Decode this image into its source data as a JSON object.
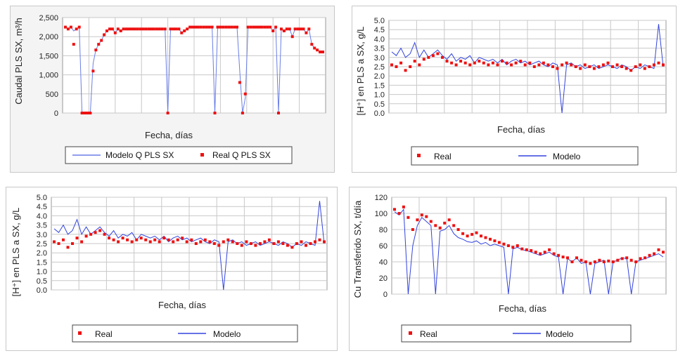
{
  "charts": [
    {
      "ylabel": "Caudal PLS SX, m³/h",
      "xlabel": "Fecha, días",
      "yticks": [
        "2,500",
        "2,000",
        "1,500",
        "1,000",
        "500",
        "0"
      ],
      "legend": [
        "Modelo Q PLS SX",
        "Real Q PLS SX"
      ],
      "colors": {
        "model": "#6a7fe6",
        "real": "#ee1111"
      }
    },
    {
      "ylabel": "[H⁺] en PLS a SX, g/L",
      "xlabel": "Fecha, días",
      "yticks": [
        "5.0",
        "4.5",
        "4.0",
        "3.5",
        "3.0",
        "2.5",
        "2.0",
        "1.5",
        "1.0",
        "0.5",
        "0.0"
      ],
      "legend": [
        "Real",
        "Modelo"
      ],
      "colors": {
        "model": "#3344dd",
        "real": "#ee1111"
      }
    },
    {
      "ylabel": "[H⁺] en PLS a SX, g/L",
      "xlabel": "Fecha, días",
      "yticks": [
        "5.0",
        "4.5",
        "4.0",
        "3.5",
        "3.0",
        "2.5",
        "2.0",
        "1.5",
        "1.0",
        "0.5",
        "0.0"
      ],
      "legend": [
        "Real",
        "Modelo"
      ],
      "colors": {
        "model": "#3344dd",
        "real": "#ee1111"
      }
    },
    {
      "ylabel": "Cu Transferido SX, t/día",
      "xlabel": "Fecha, días",
      "yticks": [
        "120",
        "100",
        "80",
        "60",
        "40",
        "20",
        "0"
      ],
      "legend": [
        "Real",
        "Modelo"
      ],
      "colors": {
        "model": "#3344dd",
        "real": "#ee1111"
      }
    }
  ],
  "chart_data": [
    {
      "type": "scatter",
      "ylabel": "Caudal PLS SX, m³/h",
      "xlabel": "Fecha, días",
      "ylim": [
        0,
        2500
      ],
      "grid": true,
      "legend_position": "bottom",
      "series": [
        {
          "name": "Modelo Q PLS SX",
          "style": "line",
          "values": [
            2250,
            2200,
            2250,
            2150,
            2200,
            2250,
            0,
            0,
            0,
            0,
            1300,
            1650,
            1800,
            1900,
            2050,
            2150,
            2200,
            2200,
            2100,
            2200,
            2150,
            2200,
            2200,
            2200,
            2200,
            2200,
            2200,
            2200,
            2200,
            2200,
            2200,
            2200,
            2200,
            2200,
            2200,
            2200,
            2200,
            0,
            2200,
            2200,
            2200,
            2200,
            2100,
            2150,
            2200,
            2250,
            2250,
            2250,
            2250,
            2250,
            2250,
            2250,
            2250,
            2250,
            0,
            2250,
            2250,
            2250,
            2250,
            2250,
            2250,
            2250,
            2250,
            1100,
            0,
            400,
            2250,
            2250,
            2250,
            2250,
            2250,
            2250,
            2250,
            2250,
            2250,
            2150,
            2250,
            0,
            2200,
            2150,
            2200,
            2200,
            2000,
            2200,
            2200,
            2200,
            2200,
            2100,
            2200,
            1800,
            1700,
            1650,
            1600,
            1600
          ]
        },
        {
          "name": "Real Q PLS SX",
          "style": "markers",
          "values": [
            2250,
            2200,
            2250,
            1800,
            2200,
            2250,
            0,
            0,
            0,
            0,
            1100,
            1650,
            1800,
            1900,
            2050,
            2150,
            2200,
            2200,
            2100,
            2200,
            2150,
            2200,
            2200,
            2200,
            2200,
            2200,
            2200,
            2200,
            2200,
            2200,
            2200,
            2200,
            2200,
            2200,
            2200,
            2200,
            2200,
            0,
            2200,
            2200,
            2200,
            2200,
            2100,
            2150,
            2200,
            2250,
            2250,
            2250,
            2250,
            2250,
            2250,
            2250,
            2250,
            2250,
            0,
            2250,
            2250,
            2250,
            2250,
            2250,
            2250,
            2250,
            2250,
            800,
            0,
            500,
            2250,
            2250,
            2250,
            2250,
            2250,
            2250,
            2250,
            2250,
            2250,
            2150,
            2250,
            0,
            2200,
            2150,
            2200,
            2200,
            2000,
            2200,
            2200,
            2200,
            2200,
            2100,
            2200,
            1800,
            1700,
            1650,
            1600,
            1600
          ]
        }
      ]
    },
    {
      "type": "scatter",
      "ylabel": "[H⁺] en PLS a SX, g/L",
      "xlabel": "Fecha, días",
      "ylim": [
        0,
        5
      ],
      "grid": true,
      "legend_position": "bottom",
      "series": [
        {
          "name": "Real",
          "style": "markers",
          "values": [
            2.6,
            2.5,
            2.7,
            2.3,
            2.5,
            2.8,
            2.6,
            2.9,
            3.0,
            3.1,
            3.2,
            3.0,
            2.8,
            2.7,
            2.6,
            2.8,
            2.7,
            2.6,
            2.7,
            2.8,
            2.7,
            2.6,
            2.7,
            2.6,
            2.8,
            2.7,
            2.6,
            2.7,
            2.8,
            2.6,
            2.7,
            2.5,
            2.6,
            2.7,
            2.6,
            2.5,
            2.4,
            2.6,
            2.7,
            2.6,
            2.5,
            2.4,
            2.6,
            2.5,
            2.4,
            2.5,
            2.6,
            2.7,
            2.5,
            2.6,
            2.5,
            2.4,
            2.3,
            2.5,
            2.6,
            2.4,
            2.5,
            2.6,
            2.7,
            2.6
          ]
        },
        {
          "name": "Modelo",
          "style": "line",
          "values": [
            3.3,
            3.1,
            3.5,
            3.0,
            3.2,
            3.8,
            3.0,
            3.4,
            3.0,
            3.2,
            3.4,
            3.1,
            2.9,
            3.2,
            2.8,
            3.0,
            2.9,
            3.1,
            2.7,
            3.0,
            2.9,
            2.8,
            2.9,
            2.7,
            2.9,
            2.6,
            2.8,
            2.9,
            2.7,
            2.8,
            2.6,
            2.7,
            2.8,
            2.6,
            2.5,
            2.7,
            2.6,
            0.0,
            2.6,
            2.7,
            2.5,
            2.6,
            2.4,
            2.5,
            2.6,
            2.4,
            2.5,
            2.6,
            2.5,
            2.4,
            2.6,
            2.5,
            2.3,
            2.5,
            2.4,
            2.6,
            2.5,
            2.4,
            4.8,
            2.5
          ]
        }
      ]
    },
    {
      "type": "scatter",
      "ylabel": "[H⁺] en PLS a SX, g/L",
      "xlabel": "Fecha, días",
      "ylim": [
        0,
        5
      ],
      "grid": true,
      "legend_position": "bottom",
      "series": [
        {
          "name": "Real",
          "style": "markers",
          "values": [
            2.6,
            2.5,
            2.7,
            2.3,
            2.5,
            2.8,
            2.6,
            2.9,
            3.0,
            3.1,
            3.2,
            3.0,
            2.8,
            2.7,
            2.6,
            2.8,
            2.7,
            2.6,
            2.7,
            2.8,
            2.7,
            2.6,
            2.7,
            2.6,
            2.8,
            2.7,
            2.6,
            2.7,
            2.8,
            2.6,
            2.7,
            2.5,
            2.6,
            2.7,
            2.6,
            2.5,
            2.4,
            2.6,
            2.7,
            2.6,
            2.5,
            2.4,
            2.6,
            2.5,
            2.4,
            2.5,
            2.6,
            2.7,
            2.5,
            2.6,
            2.5,
            2.4,
            2.3,
            2.5,
            2.6,
            2.4,
            2.5,
            2.6,
            2.7,
            2.6
          ]
        },
        {
          "name": "Modelo",
          "style": "line",
          "values": [
            3.3,
            3.1,
            3.5,
            3.0,
            3.2,
            3.8,
            3.0,
            3.4,
            3.0,
            3.2,
            3.4,
            3.1,
            2.9,
            3.2,
            2.8,
            3.0,
            2.9,
            3.1,
            2.7,
            3.0,
            2.9,
            2.8,
            2.9,
            2.7,
            2.9,
            2.6,
            2.8,
            2.9,
            2.7,
            2.8,
            2.6,
            2.7,
            2.8,
            2.6,
            2.5,
            2.7,
            2.6,
            0.0,
            2.6,
            2.7,
            2.5,
            2.6,
            2.4,
            2.5,
            2.6,
            2.4,
            2.5,
            2.6,
            2.5,
            2.4,
            2.6,
            2.5,
            2.3,
            2.5,
            2.4,
            2.6,
            2.5,
            2.4,
            4.8,
            2.5
          ]
        }
      ]
    },
    {
      "type": "scatter",
      "ylabel": "Cu Transferido SX, t/día",
      "xlabel": "Fecha, días",
      "ylim": [
        0,
        120
      ],
      "grid": true,
      "legend_position": "bottom",
      "series": [
        {
          "name": "Real",
          "style": "markers",
          "values": [
            105,
            100,
            108,
            95,
            80,
            92,
            98,
            96,
            90,
            85,
            82,
            88,
            92,
            85,
            80,
            75,
            72,
            74,
            76,
            72,
            70,
            68,
            66,
            64,
            62,
            60,
            58,
            60,
            56,
            55,
            54,
            52,
            50,
            52,
            55,
            50,
            48,
            46,
            45,
            40,
            45,
            42,
            40,
            38,
            40,
            42,
            40,
            41,
            40,
            42,
            44,
            45,
            42,
            40,
            44,
            45,
            48,
            50,
            55,
            52
          ]
        },
        {
          "name": "Modelo",
          "style": "line",
          "values": [
            102,
            98,
            105,
            0,
            60,
            85,
            95,
            90,
            85,
            0,
            78,
            80,
            85,
            75,
            70,
            68,
            65,
            64,
            66,
            62,
            64,
            60,
            62,
            60,
            58,
            0,
            56,
            58,
            55,
            54,
            52,
            50,
            48,
            50,
            52,
            48,
            46,
            0,
            44,
            40,
            45,
            38,
            40,
            0,
            38,
            40,
            42,
            0,
            40,
            42,
            45,
            44,
            0,
            40,
            42,
            44,
            46,
            48,
            50,
            46
          ]
        }
      ]
    }
  ]
}
